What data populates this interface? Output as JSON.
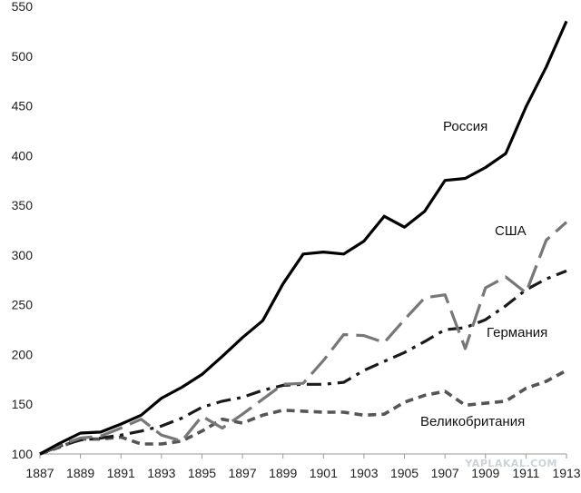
{
  "chart_data": {
    "type": "line",
    "title": "",
    "xlabel": "",
    "ylabel": "",
    "ylim": [
      100,
      550
    ],
    "xlim": [
      1887,
      1913
    ],
    "y_ticks": [
      100,
      150,
      200,
      250,
      300,
      350,
      400,
      450,
      500,
      550
    ],
    "x_ticks": [
      1887,
      1889,
      1891,
      1893,
      1895,
      1897,
      1899,
      1901,
      1903,
      1905,
      1907,
      1909,
      1911,
      1913
    ],
    "grid": false,
    "legend": "none",
    "series": [
      {
        "name": "Россия",
        "color": "#000000",
        "dash": "solid",
        "x": [
          1887,
          1888,
          1889,
          1890,
          1891,
          1892,
          1893,
          1894,
          1895,
          1896,
          1897,
          1898,
          1899,
          1900,
          1901,
          1902,
          1903,
          1904,
          1905,
          1906,
          1907,
          1908,
          1909,
          1910,
          1911,
          1912,
          1913
        ],
        "values": [
          100,
          111,
          121,
          122,
          130,
          139,
          156,
          167,
          180,
          198,
          217,
          234,
          271,
          301,
          303,
          301,
          314,
          339,
          328,
          344,
          375,
          377,
          388,
          402,
          449,
          489,
          535
        ]
      },
      {
        "name": "США",
        "color": "#777777",
        "dash": "long-dash",
        "x": [
          1887,
          1888,
          1889,
          1890,
          1891,
          1892,
          1893,
          1894,
          1895,
          1896,
          1897,
          1898,
          1899,
          1900,
          1901,
          1902,
          1903,
          1904,
          1905,
          1906,
          1907,
          1908,
          1909,
          1910,
          1911,
          1912,
          1913
        ],
        "values": [
          100,
          109,
          116,
          118,
          126,
          135,
          119,
          113,
          138,
          126,
          140,
          155,
          170,
          171,
          194,
          220,
          219,
          212,
          235,
          257,
          260,
          206,
          267,
          278,
          262,
          315,
          333
        ]
      },
      {
        "name": "Германия",
        "color": "#1a1a1a",
        "dash": "dash-dot",
        "x": [
          1887,
          1888,
          1889,
          1890,
          1891,
          1892,
          1893,
          1894,
          1895,
          1896,
          1897,
          1898,
          1899,
          1900,
          1901,
          1902,
          1903,
          1904,
          1905,
          1906,
          1907,
          1908,
          1909,
          1910,
          1911,
          1912,
          1913
        ],
        "values": [
          100,
          108,
          114,
          116,
          119,
          123,
          128,
          136,
          147,
          153,
          157,
          164,
          169,
          170,
          170,
          172,
          184,
          193,
          202,
          213,
          225,
          227,
          235,
          249,
          265,
          276,
          284
        ]
      },
      {
        "name": "Великобритания",
        "color": "#555555",
        "dash": "short-dash",
        "x": [
          1887,
          1888,
          1889,
          1890,
          1891,
          1892,
          1893,
          1894,
          1895,
          1896,
          1897,
          1898,
          1899,
          1900,
          1901,
          1902,
          1903,
          1904,
          1905,
          1906,
          1907,
          1908,
          1909,
          1910,
          1911,
          1912,
          1913
        ],
        "values": [
          100,
          107,
          115,
          115,
          117,
          110,
          110,
          113,
          123,
          135,
          131,
          139,
          144,
          143,
          142,
          142,
          139,
          140,
          152,
          159,
          163,
          149,
          151,
          153,
          166,
          173,
          184
        ]
      }
    ]
  },
  "watermark": "YAPLAKAL.COM"
}
